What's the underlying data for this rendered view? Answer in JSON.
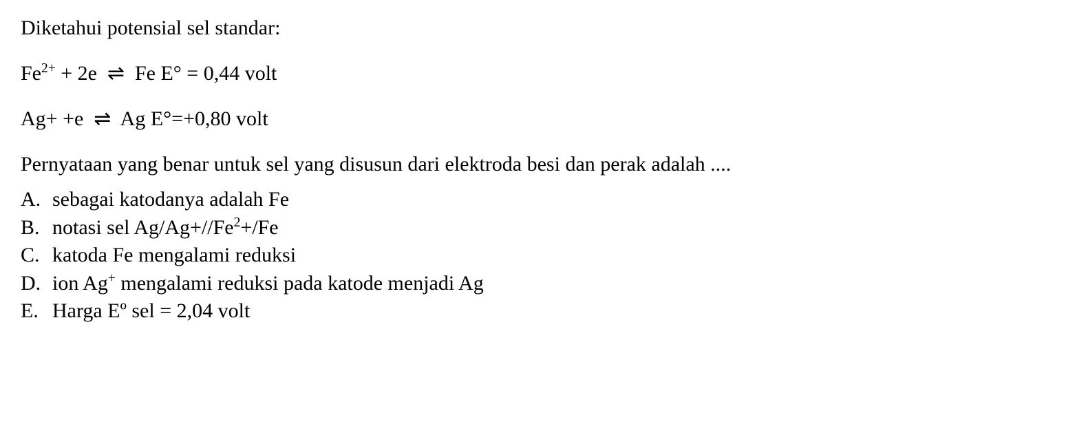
{
  "intro": "Diketahui potensial sel standar:",
  "equations": {
    "eq1": {
      "lhs_species": "Fe",
      "lhs_charge": "2+",
      "lhs_plus": " + 2e ",
      "arrow": "⇌",
      "rhs": " Fe E° = 0,44 volt"
    },
    "eq2": {
      "lhs": "Ag+ +e ",
      "arrow": "⇌",
      "rhs": " Ag E°=+0,80 volt"
    }
  },
  "question": "Pernyataan yang benar untuk sel yang disusun dari elektroda besi dan perak adalah ....",
  "options": {
    "a": {
      "letter": "A.",
      "text": "sebagai katodanya adalah Fe"
    },
    "b": {
      "letter": "B.",
      "text_pre": "notasi sel Ag/Ag+//Fe",
      "sup": "2",
      "text_post": "+/Fe"
    },
    "c": {
      "letter": "C.",
      "text": "katoda Fe mengalami reduksi"
    },
    "d": {
      "letter": "D.",
      "text_pre": "ion Ag",
      "sup": "+",
      "text_post": " mengalami reduksi pada katode menjadi Ag"
    },
    "e": {
      "letter": "E.",
      "text": "Harga Eº sel = 2,04 volt"
    }
  },
  "style": {
    "font_family": "Palatino Linotype, Book Antiqua, Palatino, Georgia, serif",
    "font_size_pt": 30,
    "text_color": "#000000",
    "background_color": "#ffffff"
  }
}
